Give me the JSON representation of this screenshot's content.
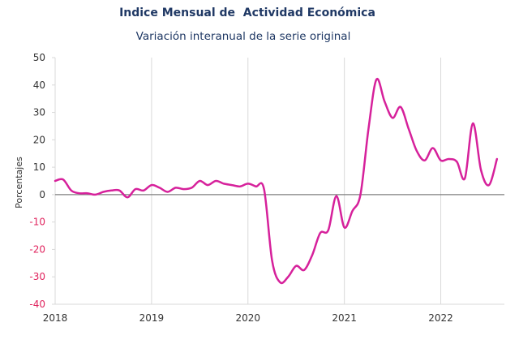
{
  "chart_data": {
    "type": "line",
    "title": "Indice Mensual de  Actividad Económica",
    "subtitle": "Variación interanual de la serie original",
    "ylabel": "Porcentajes",
    "xlabel": "",
    "ylim": [
      -40,
      50
    ],
    "yticks": [
      50,
      40,
      30,
      20,
      10,
      0,
      -10,
      -20,
      -30,
      -40
    ],
    "xlim": [
      2018,
      2022.66
    ],
    "xticks": [
      2018,
      2019,
      2020,
      2021,
      2022
    ],
    "grid": "vertical",
    "legend": "none",
    "colors": {
      "line": "#d6219b",
      "positive_tick": "#333333",
      "negative_tick": "#e0245e",
      "axis": "#7f7f7f",
      "grid": "#d9d9d9",
      "title": "#1f3864"
    },
    "series": [
      {
        "x": [
          2018.0,
          2018.083,
          2018.167,
          2018.25,
          2018.333,
          2018.417,
          2018.5,
          2018.583,
          2018.667,
          2018.75,
          2018.833,
          2018.917,
          2019.0,
          2019.083,
          2019.167,
          2019.25,
          2019.333,
          2019.417,
          2019.5,
          2019.583,
          2019.667,
          2019.75,
          2019.833,
          2019.917,
          2020.0,
          2020.083,
          2020.167,
          2020.25,
          2020.333,
          2020.417,
          2020.5,
          2020.583,
          2020.667,
          2020.75,
          2020.833,
          2020.917,
          2021.0,
          2021.083,
          2021.167,
          2021.25,
          2021.333,
          2021.417,
          2021.5,
          2021.583,
          2021.667,
          2021.75,
          2021.833,
          2021.917,
          2022.0,
          2022.083,
          2022.167,
          2022.25,
          2022.333,
          2022.417,
          2022.5,
          2022.583
        ],
        "values": [
          5,
          5.5,
          1.5,
          0.5,
          0.5,
          0,
          1,
          1.5,
          1.5,
          -1,
          2,
          1.5,
          3.5,
          2.5,
          1,
          2.5,
          2,
          2.5,
          5,
          3.5,
          5,
          4,
          3.5,
          3,
          4,
          3,
          2,
          -24,
          -32,
          -30,
          -26,
          -27.5,
          -22,
          -14,
          -13,
          -0.5,
          -12,
          -6,
          0,
          24,
          42,
          34,
          28,
          32,
          24,
          16,
          12.5,
          17,
          12.5,
          13,
          12,
          6,
          26,
          9,
          3.5,
          13
        ]
      }
    ]
  }
}
